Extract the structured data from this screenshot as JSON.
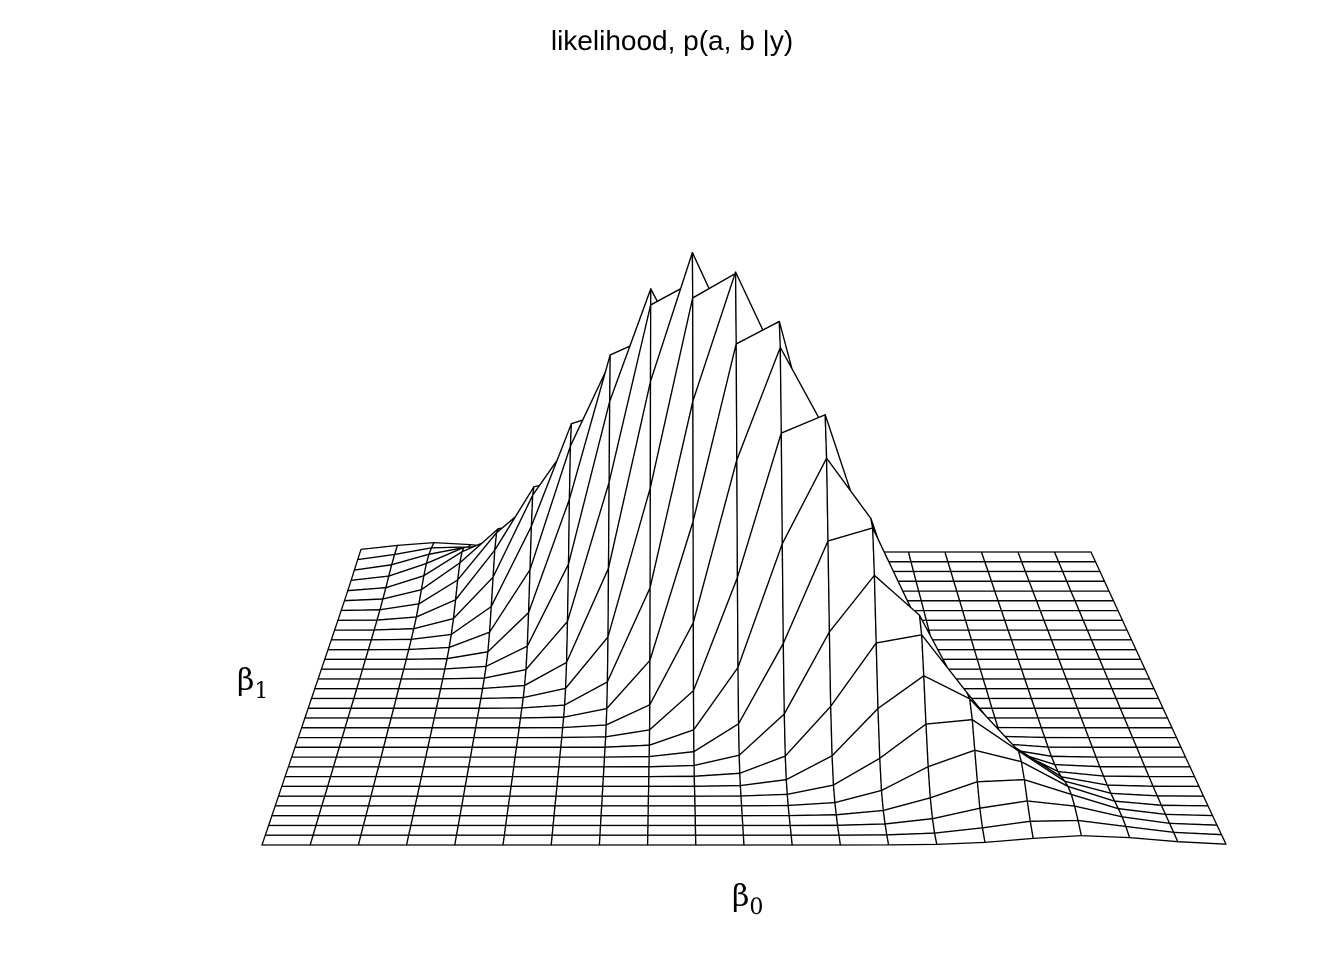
{
  "chart_data": {
    "type": "surface",
    "title": "likelihood, p(a, b |y)",
    "xlabel": {
      "symbol": "β",
      "subscript": "0"
    },
    "ylabel": {
      "symbol": "β",
      "subscript": "1"
    },
    "style": "wireframe",
    "grid": {
      "x_lines": 21,
      "y_lines": 31
    },
    "surface": {
      "peak_x_fraction": 0.48,
      "peak_y_fraction": 0.5,
      "peak_height": 1.0,
      "spread_x": 0.15,
      "spread_y": 0.18,
      "correlation": -0.9
    }
  },
  "colors": {
    "line": "#000000",
    "fill": "#ffffff",
    "background": "#ffffff"
  }
}
